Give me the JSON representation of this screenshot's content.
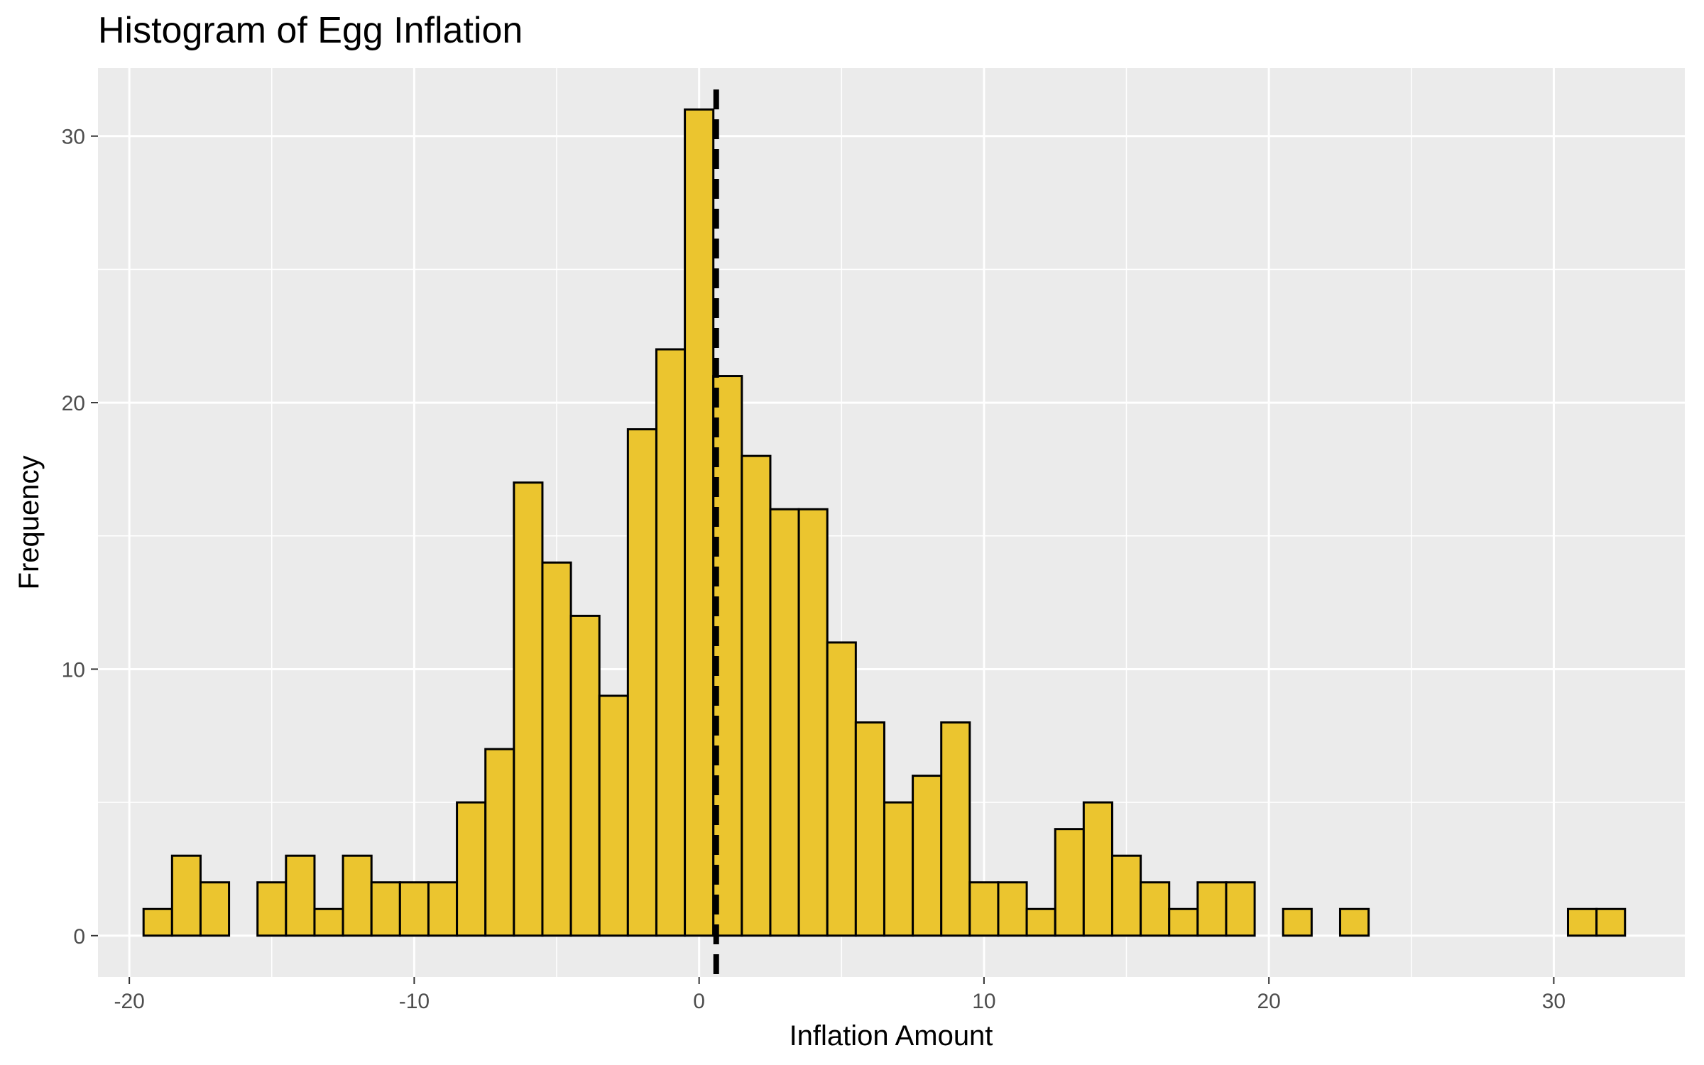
{
  "chart_data": {
    "type": "bar",
    "title": "Histogram of Egg Inflation",
    "xlabel": "Inflation Amount",
    "ylabel": "Frequency",
    "bin_width": 1,
    "xlim": [
      -21.1,
      34.6
    ],
    "ylim": [
      -1.55,
      32.55
    ],
    "x_ticks": [
      -20,
      -10,
      0,
      10,
      20,
      30
    ],
    "y_ticks": [
      0,
      10,
      20,
      30
    ],
    "x_tick_labels": [
      "-20",
      "-10",
      "0",
      "10",
      "20",
      "30"
    ],
    "y_tick_labels": [
      "0",
      "10",
      "20",
      "30"
    ],
    "bins": [
      {
        "start": -19.5,
        "count": 1
      },
      {
        "start": -18.5,
        "count": 3
      },
      {
        "start": -17.5,
        "count": 2
      },
      {
        "start": -16.5,
        "count": 0
      },
      {
        "start": -15.5,
        "count": 2
      },
      {
        "start": -14.5,
        "count": 3
      },
      {
        "start": -13.5,
        "count": 1
      },
      {
        "start": -12.5,
        "count": 3
      },
      {
        "start": -11.5,
        "count": 2
      },
      {
        "start": -10.5,
        "count": 2
      },
      {
        "start": -9.5,
        "count": 2
      },
      {
        "start": -8.5,
        "count": 5
      },
      {
        "start": -7.5,
        "count": 7
      },
      {
        "start": -6.5,
        "count": 17
      },
      {
        "start": -5.5,
        "count": 14
      },
      {
        "start": -4.5,
        "count": 12
      },
      {
        "start": -3.5,
        "count": 9
      },
      {
        "start": -2.5,
        "count": 19
      },
      {
        "start": -1.5,
        "count": 22
      },
      {
        "start": -0.5,
        "count": 31
      },
      {
        "start": 0.5,
        "count": 21
      },
      {
        "start": 1.5,
        "count": 18
      },
      {
        "start": 2.5,
        "count": 16
      },
      {
        "start": 3.5,
        "count": 16
      },
      {
        "start": 4.5,
        "count": 11
      },
      {
        "start": 5.5,
        "count": 8
      },
      {
        "start": 6.5,
        "count": 5
      },
      {
        "start": 7.5,
        "count": 6
      },
      {
        "start": 8.5,
        "count": 8
      },
      {
        "start": 9.5,
        "count": 2
      },
      {
        "start": 10.5,
        "count": 2
      },
      {
        "start": 11.5,
        "count": 1
      },
      {
        "start": 12.5,
        "count": 4
      },
      {
        "start": 13.5,
        "count": 5
      },
      {
        "start": 14.5,
        "count": 3
      },
      {
        "start": 15.5,
        "count": 2
      },
      {
        "start": 16.5,
        "count": 1
      },
      {
        "start": 17.5,
        "count": 2
      },
      {
        "start": 18.5,
        "count": 2
      },
      {
        "start": 19.5,
        "count": 0
      },
      {
        "start": 20.5,
        "count": 1
      },
      {
        "start": 21.5,
        "count": 0
      },
      {
        "start": 22.5,
        "count": 1
      },
      {
        "start": 23.5,
        "count": 0
      },
      {
        "start": 24.5,
        "count": 0
      },
      {
        "start": 25.5,
        "count": 0
      },
      {
        "start": 26.5,
        "count": 0
      },
      {
        "start": 27.5,
        "count": 0
      },
      {
        "start": 28.5,
        "count": 0
      },
      {
        "start": 29.5,
        "count": 0
      },
      {
        "start": 30.5,
        "count": 1
      },
      {
        "start": 31.5,
        "count": 1
      }
    ],
    "reference_line": {
      "x": 0.6,
      "style": "dashed"
    },
    "grid": true,
    "colors": {
      "bar_fill": "#EBC52F",
      "bar_stroke": "#000000",
      "panel_background": "#EBEBEB",
      "grid": "#FFFFFF",
      "reference_line": "#000000"
    }
  }
}
